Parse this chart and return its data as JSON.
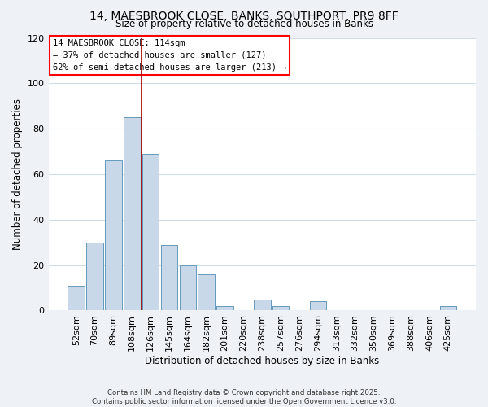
{
  "title": "14, MAESBROOK CLOSE, BANKS, SOUTHPORT, PR9 8FF",
  "subtitle": "Size of property relative to detached houses in Banks",
  "xlabel": "Distribution of detached houses by size in Banks",
  "ylabel": "Number of detached properties",
  "bar_labels": [
    "52sqm",
    "70sqm",
    "89sqm",
    "108sqm",
    "126sqm",
    "145sqm",
    "164sqm",
    "182sqm",
    "201sqm",
    "220sqm",
    "238sqm",
    "257sqm",
    "276sqm",
    "294sqm",
    "313sqm",
    "332sqm",
    "350sqm",
    "369sqm",
    "388sqm",
    "406sqm",
    "425sqm"
  ],
  "bar_values": [
    11,
    30,
    66,
    85,
    69,
    29,
    20,
    16,
    2,
    0,
    5,
    2,
    0,
    4,
    0,
    0,
    0,
    0,
    0,
    0,
    2
  ],
  "bar_color": "#c8d8e8",
  "bar_edge_color": "#6699bb",
  "vline_x": 3.5,
  "vline_color": "#aa0000",
  "annotation_title": "14 MAESBROOK CLOSE: 114sqm",
  "annotation_line1": "← 37% of detached houses are smaller (127)",
  "annotation_line2": "62% of semi-detached houses are larger (213) →",
  "annotation_box_color": "white",
  "annotation_box_edge_color": "red",
  "ylim": [
    0,
    120
  ],
  "yticks": [
    0,
    20,
    40,
    60,
    80,
    100,
    120
  ],
  "footer1": "Contains HM Land Registry data © Crown copyright and database right 2025.",
  "footer2": "Contains public sector information licensed under the Open Government Licence v3.0.",
  "bg_color": "#eef2f7",
  "plot_bg_color": "#ffffff",
  "grid_color": "#d0dde8"
}
